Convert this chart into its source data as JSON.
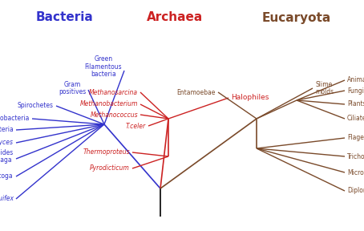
{
  "title_bacteria": "Bacteria",
  "title_archaea": "Archaea",
  "title_eucaryota": "Eucaryota",
  "color_bacteria": "#3333cc",
  "color_archaea": "#cc2222",
  "color_eucaryota": "#7a4a2a",
  "color_root": "#000000",
  "bg_color": "#ffffff"
}
